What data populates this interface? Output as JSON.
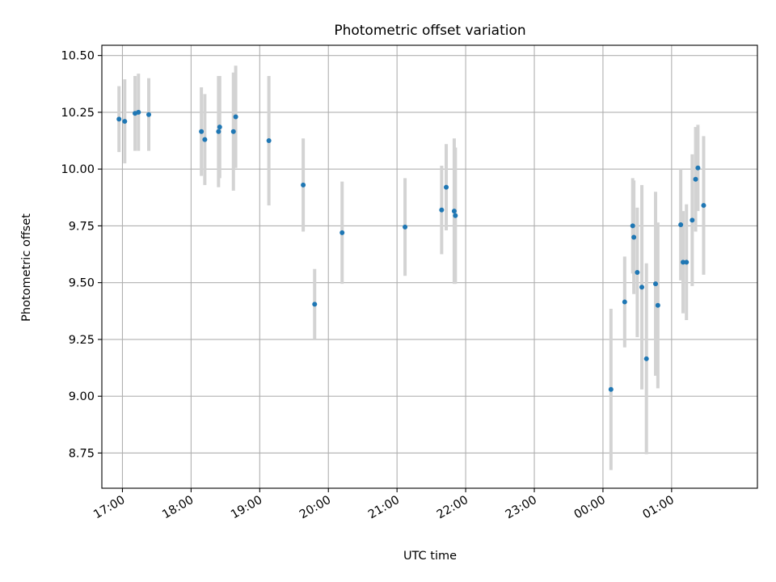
{
  "chart_data": {
    "type": "scatter",
    "title": "Photometric offset variation",
    "xlabel": "UTC time",
    "ylabel": "Photometric offset",
    "x_axis": {
      "kind": "time",
      "range": [
        "16:42",
        "02:15"
      ],
      "ticks": [
        "17:00",
        "18:00",
        "19:00",
        "20:00",
        "21:00",
        "22:00",
        "23:00",
        "00:00",
        "01:00"
      ]
    },
    "y_axis": {
      "range": [
        8.595,
        10.545
      ],
      "ticks": [
        "8.75",
        "9.00",
        "9.25",
        "9.50",
        "9.75",
        "10.00",
        "10.25",
        "10.50"
      ]
    },
    "grid": true,
    "colors": {
      "points": "#1f77b4",
      "error_bars": "#d3d3d3",
      "grid": "#b0b0b0"
    },
    "series": [
      {
        "points": [
          {
            "x": "16:57",
            "y": 10.22,
            "err": 0.145
          },
          {
            "x": "17:02",
            "y": 10.21,
            "err": 0.185
          },
          {
            "x": "17:11",
            "y": 10.245,
            "err": 0.165
          },
          {
            "x": "17:14",
            "y": 10.25,
            "err": 0.17
          },
          {
            "x": "17:23",
            "y": 10.24,
            "err": 0.16
          },
          {
            "x": "18:09",
            "y": 10.165,
            "err": 0.195
          },
          {
            "x": "18:12",
            "y": 10.13,
            "err": 0.2
          },
          {
            "x": "18:24",
            "y": 10.165,
            "err": 0.245
          },
          {
            "x": "18:25",
            "y": 10.185,
            "err": 0.225
          },
          {
            "x": "18:37",
            "y": 10.165,
            "err": 0.26
          },
          {
            "x": "18:39",
            "y": 10.23,
            "err": 0.225
          },
          {
            "x": "19:08",
            "y": 10.125,
            "err": 0.285
          },
          {
            "x": "19:38",
            "y": 9.93,
            "err": 0.205
          },
          {
            "x": "19:48",
            "y": 9.405,
            "err": 0.155
          },
          {
            "x": "20:12",
            "y": 9.72,
            "err": 0.225
          },
          {
            "x": "21:07",
            "y": 9.745,
            "err": 0.215
          },
          {
            "x": "21:39",
            "y": 9.82,
            "err": 0.195
          },
          {
            "x": "21:43",
            "y": 9.92,
            "err": 0.19
          },
          {
            "x": "21:50",
            "y": 9.815,
            "err": 0.32
          },
          {
            "x": "21:51",
            "y": 9.795,
            "err": 0.3
          },
          {
            "x": "00:07",
            "y": 9.03,
            "err": 0.355
          },
          {
            "x": "00:19",
            "y": 9.415,
            "err": 0.2
          },
          {
            "x": "00:26",
            "y": 9.75,
            "err": 0.21
          },
          {
            "x": "00:27",
            "y": 9.7,
            "err": 0.25
          },
          {
            "x": "00:30",
            "y": 9.545,
            "err": 0.285
          },
          {
            "x": "00:34",
            "y": 9.48,
            "err": 0.45
          },
          {
            "x": "00:38",
            "y": 9.165,
            "err": 0.42
          },
          {
            "x": "00:46",
            "y": 9.495,
            "err": 0.405
          },
          {
            "x": "00:48",
            "y": 9.4,
            "err": 0.365
          },
          {
            "x": "01:08",
            "y": 9.755,
            "err": 0.245
          },
          {
            "x": "01:10",
            "y": 9.59,
            "err": 0.225
          },
          {
            "x": "01:13",
            "y": 9.59,
            "err": 0.255
          },
          {
            "x": "01:18",
            "y": 9.775,
            "err": 0.29
          },
          {
            "x": "01:21",
            "y": 9.955,
            "err": 0.23
          },
          {
            "x": "01:23",
            "y": 10.005,
            "err": 0.19
          },
          {
            "x": "01:28",
            "y": 9.84,
            "err": 0.305
          }
        ]
      }
    ]
  }
}
